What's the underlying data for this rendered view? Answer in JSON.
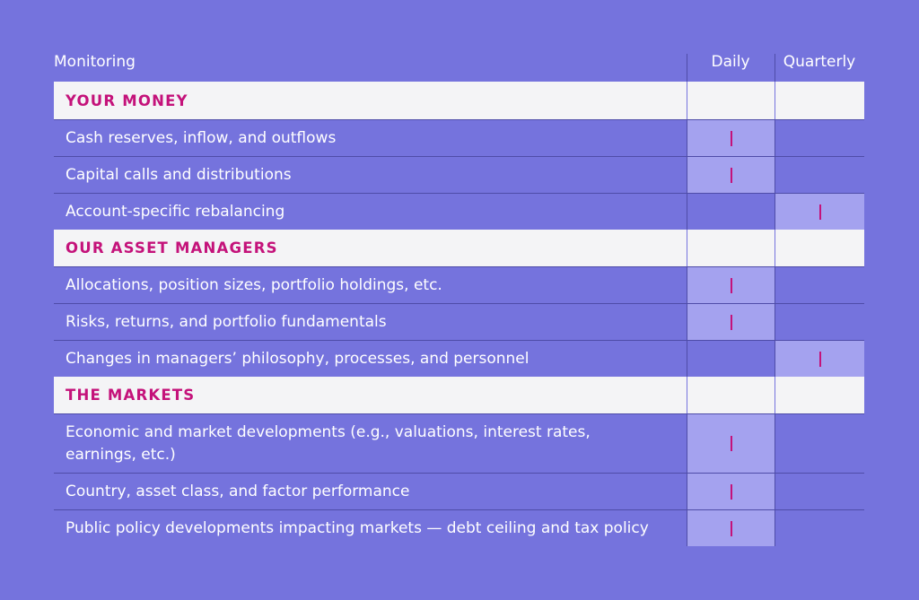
{
  "header": {
    "monitoring": "Monitoring",
    "daily": "Daily",
    "quarterly": "Quarterly"
  },
  "sections": [
    {
      "title": "YOUR MONEY",
      "rows": [
        {
          "label": "Cash reserves, inflow, and outflows",
          "frequency": "Daily"
        },
        {
          "label": "Capital calls and distributions",
          "frequency": "Daily"
        },
        {
          "label": "Account-specific rebalancing",
          "frequency": "Quarterly"
        }
      ]
    },
    {
      "title": "OUR ASSET MANAGERS",
      "rows": [
        {
          "label": "Allocations, position sizes, portfolio holdings, etc.",
          "frequency": "Daily"
        },
        {
          "label": "Risks, returns, and portfolio fundamentals",
          "frequency": "Daily"
        },
        {
          "label": "Changes in managers’ philosophy, processes, and personnel",
          "frequency": "Quarterly"
        }
      ]
    },
    {
      "title": "THE MARKETS",
      "rows": [
        {
          "label": "Economic and market developments (e.g., valuations, interest rates, earnings, etc.)",
          "frequency": "Daily"
        },
        {
          "label": "Country, asset class, and factor performance",
          "frequency": "Daily"
        },
        {
          "label": "Public policy developments impacting markets — debt ceiling and tax policy",
          "frequency": "Daily"
        }
      ]
    }
  ],
  "colors": {
    "background": "#7573dd",
    "section_band": "#f4f4f6",
    "accent": "#c4127a",
    "filled_cell": "#a4a2ef",
    "divider": "#4f4ca8"
  }
}
